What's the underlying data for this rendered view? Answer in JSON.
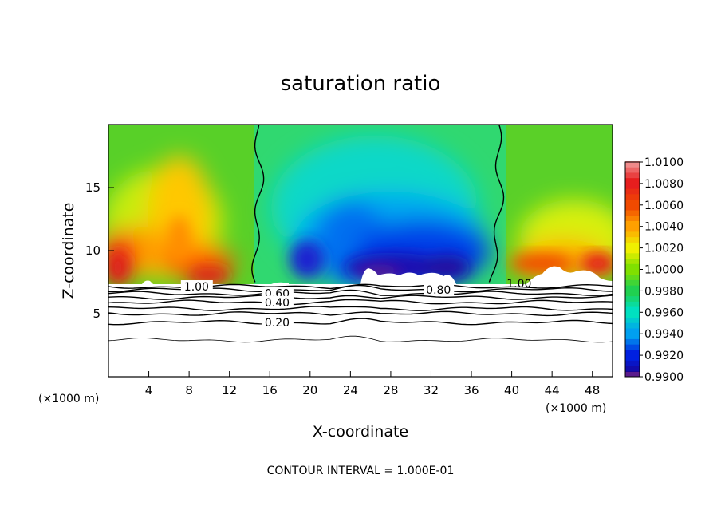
{
  "chart_data": {
    "type": "heatmap",
    "title": "saturation ratio",
    "xlabel": "X-coordinate",
    "ylabel": "Z-coordinate",
    "x_unit_left": "(×1000 m)",
    "x_unit_right": "(×1000 m)",
    "footer": "CONTOUR INTERVAL = 1.000E-01",
    "xlim": [
      0,
      50
    ],
    "ylim": [
      0,
      20
    ],
    "x_ticks": [
      {
        "value": 4,
        "label": "4"
      },
      {
        "value": 8,
        "label": "8"
      },
      {
        "value": 12,
        "label": "12"
      },
      {
        "value": 16,
        "label": "16"
      },
      {
        "value": 20,
        "label": "20"
      },
      {
        "value": 24,
        "label": "24"
      },
      {
        "value": 28,
        "label": "28"
      },
      {
        "value": 32,
        "label": "32"
      },
      {
        "value": 36,
        "label": "36"
      },
      {
        "value": 40,
        "label": "40"
      },
      {
        "value": 44,
        "label": "44"
      },
      {
        "value": 48,
        "label": "48"
      }
    ],
    "y_ticks": [
      {
        "value": 5,
        "label": "5"
      },
      {
        "value": 10,
        "label": "10"
      },
      {
        "value": 15,
        "label": "15"
      }
    ],
    "colorbar": {
      "levels": [
        {
          "value": 1.01,
          "label": "1.0100",
          "color": "#f08a8a"
        },
        {
          "value": 1.008,
          "label": "1.0080",
          "color": "#e61e1e"
        },
        {
          "value": 1.006,
          "label": "1.0060",
          "color": "#f04a00"
        },
        {
          "value": 1.004,
          "label": "1.0040",
          "color": "#ffa000"
        },
        {
          "value": 1.002,
          "label": "1.0020",
          "color": "#f0f000"
        },
        {
          "value": 1.0,
          "label": "1.0000",
          "color": "#80e000"
        },
        {
          "value": 0.998,
          "label": "0.9980",
          "color": "#20d050"
        },
        {
          "value": 0.996,
          "label": "0.9960",
          "color": "#00e0c0"
        },
        {
          "value": 0.994,
          "label": "0.9940",
          "color": "#00a0f0"
        },
        {
          "value": 0.992,
          "label": "0.9920",
          "color": "#0020e0"
        },
        {
          "value": 0.99,
          "label": "0.9900",
          "color": "#1a0090"
        }
      ],
      "bottom_color": "#5a1a8c"
    },
    "cloud_base_z": 7.3,
    "contour_lines": [
      {
        "label": "1.00",
        "label_x": 7.5,
        "z": 7.15,
        "weight": "heavy"
      },
      {
        "label": "",
        "z": 6.9,
        "weight": "heavy"
      },
      {
        "label": "0.60",
        "label_x": 15.5,
        "z": 6.6,
        "weight": "heavy"
      },
      {
        "label": "",
        "z": 6.3,
        "weight": "heavy"
      },
      {
        "label": "0.40",
        "label_x": 15.5,
        "z": 5.9,
        "weight": "heavy"
      },
      {
        "label": "",
        "z": 5.4,
        "weight": "heavy"
      },
      {
        "label": "",
        "z": 5.0,
        "weight": "heavy"
      },
      {
        "label": "0.20",
        "label_x": 15.5,
        "z": 4.3,
        "weight": "heavy"
      },
      {
        "label": "",
        "z": 2.9,
        "weight": "thin"
      }
    ],
    "extra_contour_labels": [
      {
        "label": "0.80",
        "x": 31.5,
        "z": 6.9
      },
      {
        "label": "1.00",
        "x": 39.5,
        "z": 7.4
      }
    ],
    "boundary_x": [
      14.8,
      38.5
    ],
    "regions": [
      {
        "x": 3.5,
        "z": 10.5,
        "value": 1.006
      },
      {
        "x": 8,
        "z": 11.5,
        "value": 1.003
      },
      {
        "x": 25,
        "z": 10.5,
        "value": 0.992
      },
      {
        "x": 31,
        "z": 9.5,
        "value": 0.991
      },
      {
        "x": 44,
        "z": 9.5,
        "value": 1.005
      }
    ]
  }
}
